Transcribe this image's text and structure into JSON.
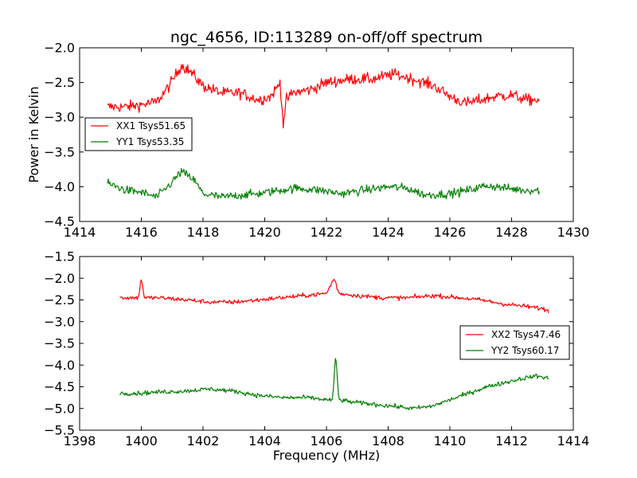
{
  "chart_data": [
    {
      "type": "line",
      "title": "ngc_4656, ID:113289 on-off/off spectrum",
      "xlabel": "",
      "ylabel": "Power in Kelvin",
      "xlim": [
        1414,
        1430
      ],
      "ylim": [
        -4.5,
        -2.0
      ],
      "xticks": [
        "1414",
        "1416",
        "1418",
        "1420",
        "1422",
        "1424",
        "1426",
        "1428",
        "1430"
      ],
      "yticks": [
        "−4.5",
        "−4.0",
        "−3.5",
        "−3.0",
        "−2.5",
        "−2.0"
      ],
      "grid": false,
      "legend_position": "center-left",
      "series": [
        {
          "name": "XX1 Tsys51.65",
          "color": "#ff0000",
          "noise": 0.08,
          "x": [
            1414.9,
            1415.5,
            1416.0,
            1416.5,
            1416.9,
            1417.3,
            1417.6,
            1418.0,
            1418.6,
            1419.2,
            1419.8,
            1420.2,
            1420.5,
            1420.6,
            1420.7,
            1420.9,
            1421.5,
            1422.0,
            1422.8,
            1423.5,
            1424.2,
            1424.8,
            1425.5,
            1426.0,
            1426.5,
            1427.0,
            1427.5,
            1428.0,
            1428.5,
            1428.9
          ],
          "y": [
            -2.85,
            -2.85,
            -2.82,
            -2.78,
            -2.55,
            -2.25,
            -2.35,
            -2.55,
            -2.65,
            -2.65,
            -2.75,
            -2.7,
            -2.5,
            -3.1,
            -2.75,
            -2.65,
            -2.6,
            -2.5,
            -2.45,
            -2.45,
            -2.38,
            -2.45,
            -2.55,
            -2.7,
            -2.8,
            -2.75,
            -2.7,
            -2.68,
            -2.75,
            -2.75
          ]
        },
        {
          "name": "YY1 Tsys53.35",
          "color": "#008000",
          "noise": 0.06,
          "x": [
            1414.9,
            1415.5,
            1416.0,
            1416.5,
            1416.9,
            1417.3,
            1417.7,
            1418.0,
            1418.6,
            1419.2,
            1419.8,
            1420.5,
            1421.0,
            1421.8,
            1422.5,
            1423.2,
            1424.0,
            1424.6,
            1425.2,
            1426.0,
            1426.6,
            1427.2,
            1427.8,
            1428.4,
            1428.9
          ],
          "y": [
            -3.95,
            -4.05,
            -4.08,
            -4.15,
            -3.98,
            -3.78,
            -3.9,
            -4.1,
            -4.15,
            -4.12,
            -4.1,
            -4.05,
            -4.02,
            -4.05,
            -4.1,
            -4.05,
            -4.0,
            -4.02,
            -4.12,
            -4.1,
            -4.05,
            -3.98,
            -4.02,
            -4.05,
            -4.05
          ]
        }
      ]
    },
    {
      "type": "line",
      "title": "",
      "xlabel": "Frequency (MHz)",
      "ylabel": "",
      "xlim": [
        1398,
        1414
      ],
      "ylim": [
        -5.5,
        -1.5
      ],
      "xticks": [
        "1398",
        "1400",
        "1402",
        "1404",
        "1406",
        "1408",
        "1410",
        "1412",
        "1414"
      ],
      "yticks": [
        "−5.5",
        "−5.0",
        "−4.5",
        "−4.0",
        "−3.5",
        "−3.0",
        "−2.5",
        "−2.0",
        "−1.5"
      ],
      "grid": false,
      "legend_position": "center-right",
      "series": [
        {
          "name": "XX2 Tsys47.46",
          "color": "#ff0000",
          "noise": 0.05,
          "x": [
            1399.3,
            1399.9,
            1400.0,
            1400.1,
            1400.6,
            1401.5,
            1402.2,
            1403.0,
            1403.8,
            1404.5,
            1405.3,
            1406.0,
            1406.25,
            1406.4,
            1407.0,
            1407.8,
            1408.6,
            1409.5,
            1410.3,
            1411.0,
            1411.8,
            1412.5,
            1413.0,
            1413.2
          ],
          "y": [
            -2.45,
            -2.45,
            -2.0,
            -2.45,
            -2.45,
            -2.5,
            -2.55,
            -2.55,
            -2.5,
            -2.45,
            -2.4,
            -2.35,
            -2.0,
            -2.35,
            -2.4,
            -2.45,
            -2.45,
            -2.4,
            -2.45,
            -2.5,
            -2.6,
            -2.65,
            -2.7,
            -2.75
          ]
        },
        {
          "name": "YY2 Tsys60.17",
          "color": "#008000",
          "noise": 0.05,
          "x": [
            1399.3,
            1399.9,
            1400.6,
            1401.4,
            1402.2,
            1403.0,
            1403.8,
            1404.6,
            1405.4,
            1406.0,
            1406.2,
            1406.3,
            1406.4,
            1406.8,
            1407.5,
            1408.2,
            1408.8,
            1409.4,
            1410.0,
            1410.6,
            1411.2,
            1411.8,
            1412.4,
            1412.8,
            1413.2
          ],
          "y": [
            -4.65,
            -4.65,
            -4.62,
            -4.6,
            -4.55,
            -4.6,
            -4.7,
            -4.75,
            -4.75,
            -4.8,
            -4.8,
            -3.75,
            -4.8,
            -4.85,
            -4.9,
            -4.95,
            -5.0,
            -4.95,
            -4.8,
            -4.65,
            -4.5,
            -4.4,
            -4.3,
            -4.25,
            -4.3
          ]
        }
      ]
    }
  ]
}
